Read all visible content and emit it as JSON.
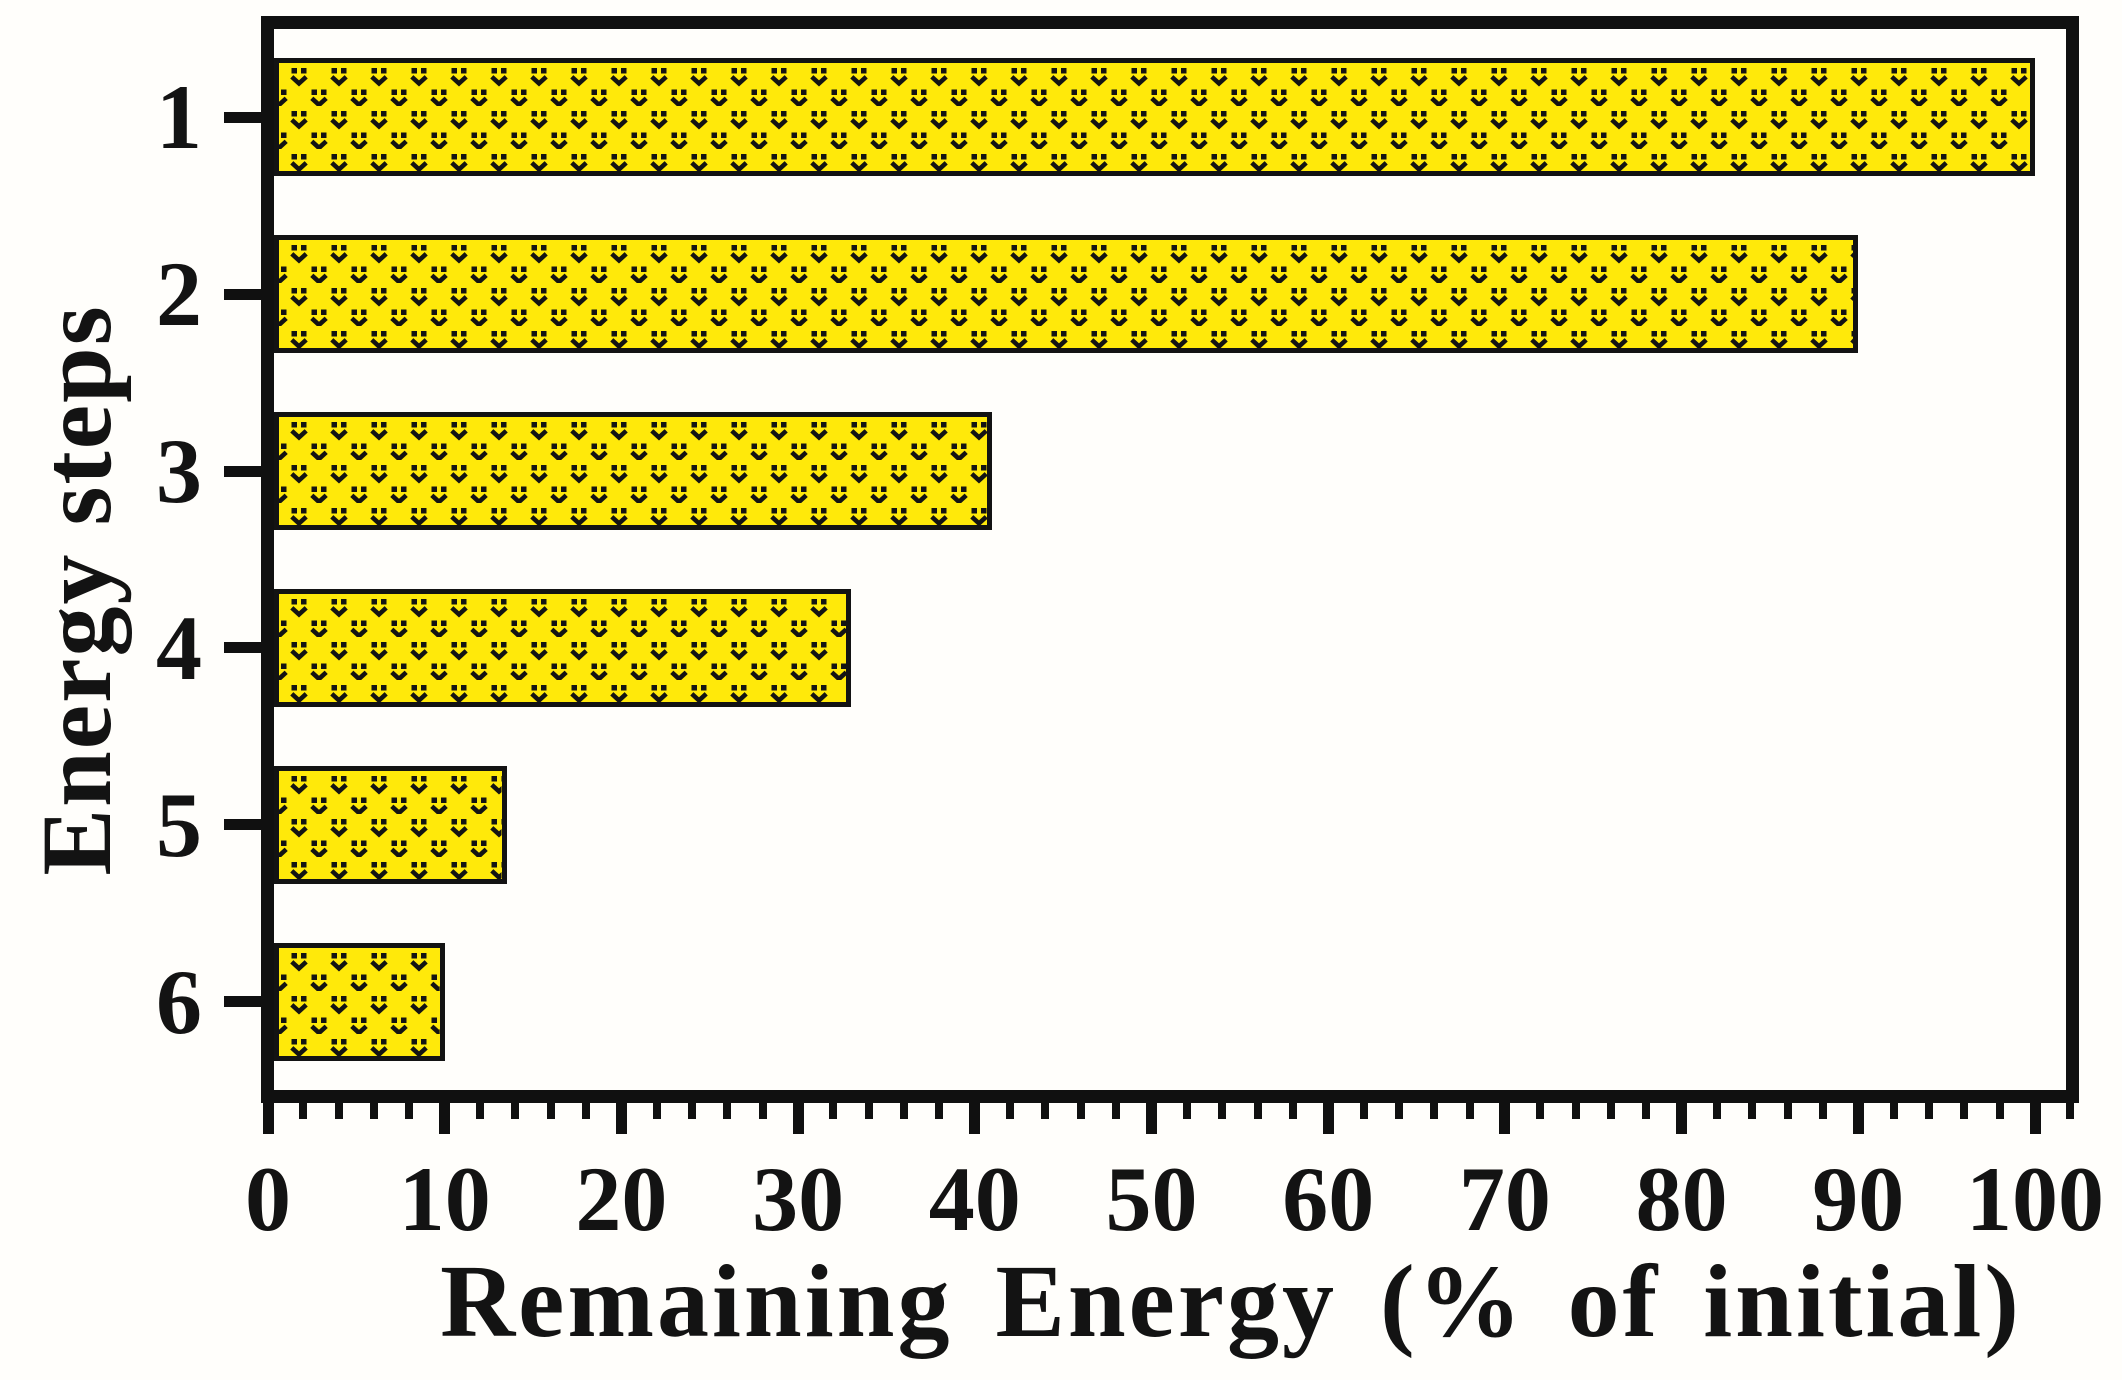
{
  "chart_data": {
    "type": "bar",
    "orientation": "horizontal",
    "categories": [
      "1",
      "2",
      "3",
      "4",
      "5",
      "6"
    ],
    "values": [
      100,
      90,
      41,
      33,
      13.5,
      10
    ],
    "xlabel": "Remaining Energy (% of initial)",
    "ylabel": "Energy steps",
    "xlim": [
      0,
      102
    ],
    "x_major_ticks": [
      "0",
      "10",
      "20",
      "30",
      "40",
      "50",
      "60",
      "70",
      "80",
      "90",
      "100"
    ],
    "x_minor_tick_step": 2,
    "grid": "off",
    "legend": "none",
    "bar_fill_color": "#FFE90A",
    "bar_hatch": "staggered black dots-and-chevron pattern",
    "bar_edge_color": "#131313",
    "frame_color": "#101010",
    "text_color": "#131313",
    "background_color": "#FFFEFB"
  }
}
